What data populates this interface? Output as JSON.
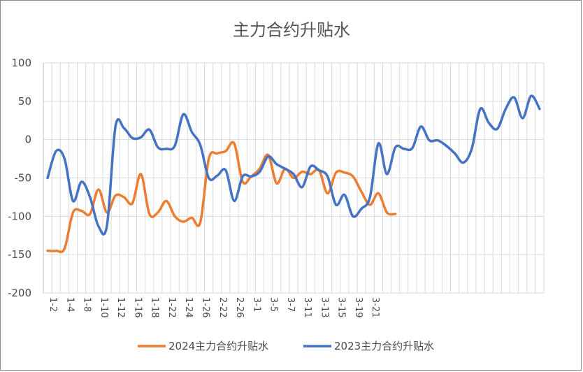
{
  "chart_data": {
    "type": "line",
    "title": "主力合约升贴水",
    "ylim": [
      -200,
      100
    ],
    "yticks": [
      100,
      50,
      0,
      -50,
      -100,
      -150,
      -200
    ],
    "grid": true,
    "legend_position": "bottom",
    "x_ticks": [
      "1-2",
      "1-4",
      "1-8",
      "1-10",
      "1-12",
      "1-16",
      "1-18",
      "1-22",
      "1-24",
      "1-26",
      "2-22",
      "2-26",
      "3-1",
      "3-5",
      "3-7",
      "3-11",
      "3-13",
      "3-15",
      "3-19",
      "3-21"
    ],
    "x_count": 59,
    "series": [
      {
        "name": "2024主力合约升贴水",
        "color": "#ED7D31",
        "values": [
          -145,
          -145,
          -142,
          -95,
          -93,
          -97,
          -65,
          -95,
          -73,
          -75,
          -83,
          -45,
          -97,
          -95,
          -80,
          -100,
          -107,
          -102,
          -108,
          -25,
          -18,
          -15,
          -5,
          -55,
          -48,
          -38,
          -20,
          -57,
          -38,
          -50,
          -42,
          -45,
          -40,
          -70,
          -43,
          -43,
          -48,
          -68,
          -85,
          -70,
          -95,
          -97
        ]
      },
      {
        "name": "2023主力合约升贴水",
        "color": "#4472C4",
        "values": [
          -50,
          -15,
          -25,
          -80,
          -55,
          -75,
          -113,
          -112,
          17,
          15,
          2,
          3,
          13,
          -10,
          -12,
          -8,
          33,
          10,
          -7,
          -50,
          -47,
          -40,
          -80,
          -48,
          -48,
          -42,
          -22,
          -32,
          -38,
          -45,
          -62,
          -35,
          -40,
          -48,
          -85,
          -72,
          -100,
          -90,
          -75,
          -5,
          -45,
          -10,
          -12,
          -11,
          17,
          -1,
          -1,
          -8,
          -18,
          -30,
          -12,
          40,
          22,
          14,
          40,
          55,
          28,
          57,
          40
        ]
      }
    ]
  }
}
